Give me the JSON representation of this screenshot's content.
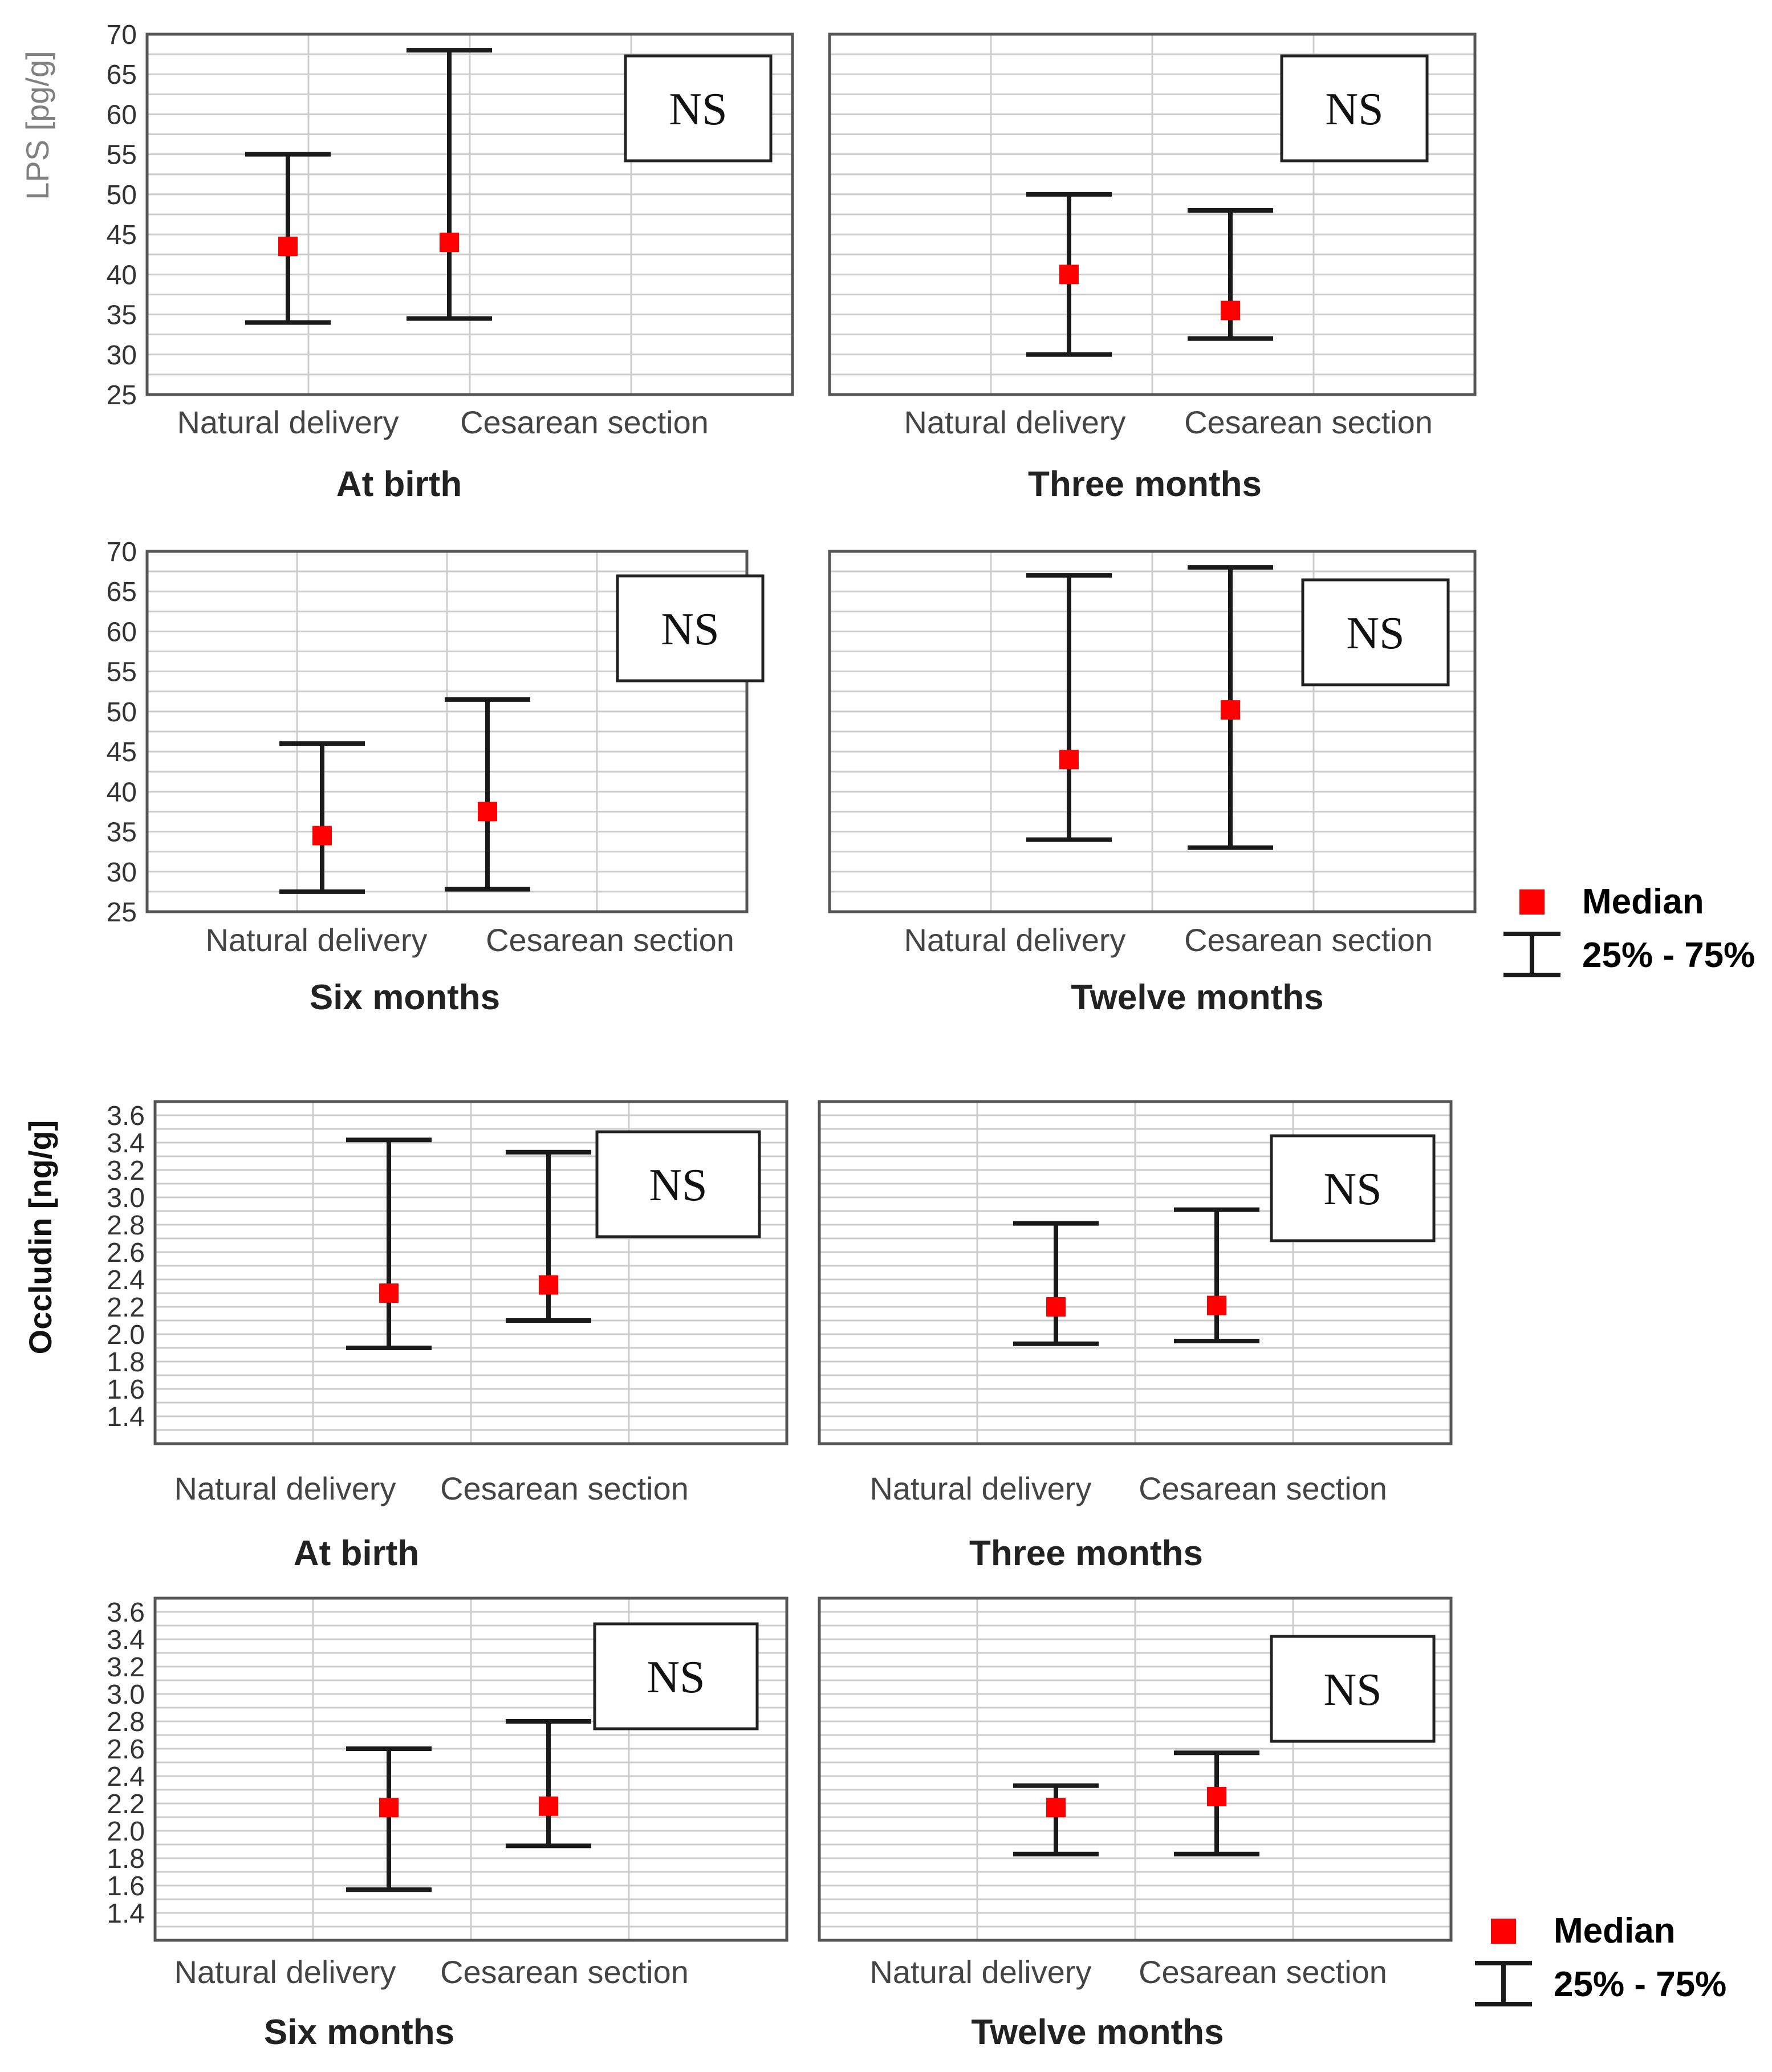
{
  "colors": {
    "median": "#ff0000",
    "whisker": "#1a1a1a",
    "frame": "#555555",
    "grid": "#cccccc",
    "tick_text": "#333333",
    "ylabel_lps": "#808080",
    "ylabel_occludin": "#111111",
    "background": "#ffffff"
  },
  "legend_top": {
    "median_label": "Median",
    "range_label": "25% - 75%"
  },
  "legend_bottom": {
    "median_label": "Median",
    "range_label": "25% - 75%"
  },
  "chart_data": [
    {
      "type": "range",
      "title": "At birth",
      "ylabel": "LPS [pg/g]",
      "ylim": [
        25,
        70
      ],
      "yticks": [
        "25",
        "30",
        "35",
        "40",
        "45",
        "50",
        "55",
        "60",
        "65",
        "70"
      ],
      "categories": [
        "Natural delivery",
        "Cesarean section"
      ],
      "series": [
        {
          "name": "Median",
          "values": [
            43.5,
            44.0
          ]
        },
        {
          "name": "25% - 75%",
          "low": [
            34.0,
            34.5
          ],
          "high": [
            55.0,
            68.0
          ]
        }
      ],
      "annotation": "NS",
      "grid": true
    },
    {
      "type": "range",
      "title": "Three months",
      "ylabel": "",
      "ylim": [
        25,
        70
      ],
      "categories": [
        "Natural delivery",
        "Cesarean section"
      ],
      "series": [
        {
          "name": "Median",
          "values": [
            40.0,
            35.5
          ]
        },
        {
          "name": "25% - 75%",
          "low": [
            30.0,
            32.0
          ],
          "high": [
            50.0,
            48.0
          ]
        }
      ],
      "annotation": "NS",
      "grid": true
    },
    {
      "type": "range",
      "title": "Six months",
      "ylabel": "",
      "ylim": [
        25,
        70
      ],
      "yticks": [
        "25",
        "30",
        "35",
        "40",
        "45",
        "50",
        "55",
        "60",
        "65",
        "70"
      ],
      "categories": [
        "Natural delivery",
        "Cesarean section"
      ],
      "series": [
        {
          "name": "Median",
          "values": [
            34.5,
            37.5
          ]
        },
        {
          "name": "25% - 75%",
          "low": [
            27.5,
            27.8
          ],
          "high": [
            46.0,
            51.5
          ]
        }
      ],
      "annotation": "NS",
      "grid": true
    },
    {
      "type": "range",
      "title": "Twelve months",
      "ylabel": "",
      "ylim": [
        25,
        70
      ],
      "categories": [
        "Natural delivery",
        "Cesarean section"
      ],
      "series": [
        {
          "name": "Median",
          "values": [
            44.0,
            50.2
          ]
        },
        {
          "name": "25% - 75%",
          "low": [
            34.0,
            33.0
          ],
          "high": [
            67.0,
            68.0
          ]
        }
      ],
      "annotation": "NS",
      "grid": true
    },
    {
      "type": "range",
      "title": "At birth",
      "ylabel": "Occludin [ng/g]",
      "ylim": [
        1.2,
        3.7
      ],
      "yticks": [
        "1.4",
        "1.6",
        "1.8",
        "2.0",
        "2.2",
        "2.4",
        "2.6",
        "2.8",
        "3.0",
        "3.2",
        "3.4",
        "3.6"
      ],
      "categories": [
        "Natural delivery",
        "Cesarean section"
      ],
      "series": [
        {
          "name": "Median",
          "values": [
            2.3,
            2.36
          ]
        },
        {
          "name": "25% - 75%",
          "low": [
            1.9,
            2.1
          ],
          "high": [
            3.42,
            3.33
          ]
        }
      ],
      "annotation": "NS",
      "grid": true
    },
    {
      "type": "range",
      "title": "Three months",
      "ylabel": "",
      "ylim": [
        1.2,
        3.7
      ],
      "categories": [
        "Natural delivery",
        "Cesarean section"
      ],
      "series": [
        {
          "name": "Median",
          "values": [
            2.2,
            2.21
          ]
        },
        {
          "name": "25% - 75%",
          "low": [
            1.93,
            1.95
          ],
          "high": [
            2.81,
            2.91
          ]
        }
      ],
      "annotation": "NS",
      "grid": true
    },
    {
      "type": "range",
      "title": "Six months",
      "ylabel": "",
      "ylim": [
        1.2,
        3.7
      ],
      "yticks": [
        "1.4",
        "1.6",
        "1.8",
        "2.0",
        "2.2",
        "2.4",
        "2.6",
        "2.8",
        "3.0",
        "3.2",
        "3.4",
        "3.6"
      ],
      "categories": [
        "Natural delivery",
        "Cesarean section"
      ],
      "series": [
        {
          "name": "Median",
          "values": [
            2.17,
            2.18
          ]
        },
        {
          "name": "25% - 75%",
          "low": [
            1.57,
            1.89
          ],
          "high": [
            2.6,
            2.8
          ]
        }
      ],
      "annotation": "NS",
      "grid": true
    },
    {
      "type": "range",
      "title": "Twelve months",
      "ylabel": "",
      "ylim": [
        1.2,
        3.7
      ],
      "categories": [
        "Natural delivery",
        "Cesarean section"
      ],
      "series": [
        {
          "name": "Median",
          "values": [
            2.17,
            2.25
          ]
        },
        {
          "name": "25% - 75%",
          "low": [
            1.83,
            1.83
          ],
          "high": [
            2.33,
            2.57
          ]
        }
      ],
      "annotation": "NS",
      "grid": true
    }
  ]
}
